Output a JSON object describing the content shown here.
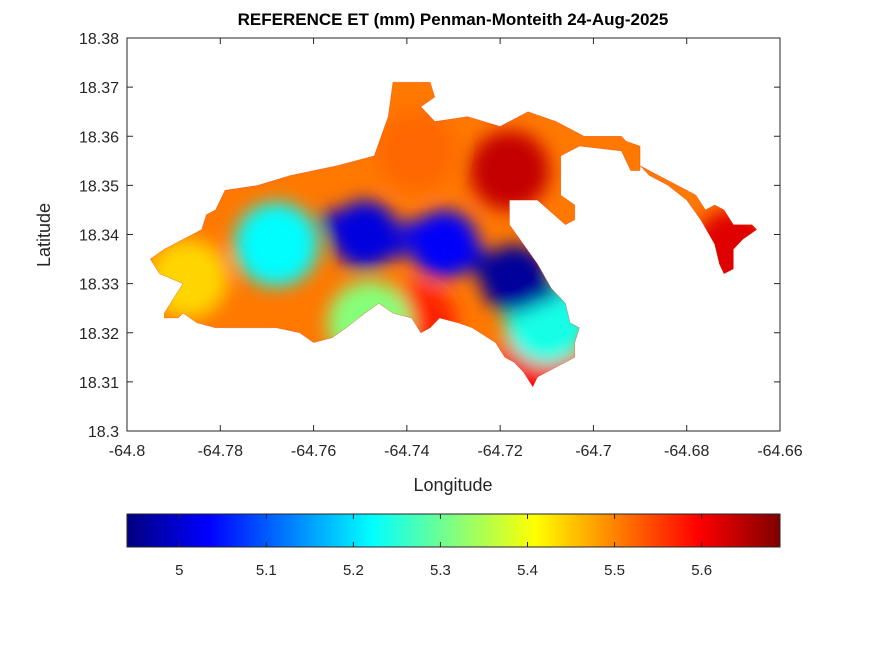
{
  "chart_data": {
    "type": "heatmap",
    "title": "REFERENCE ET (mm) Penman-Monteith 24-Aug-2025",
    "xlabel": "Longitude",
    "ylabel": "Latitude",
    "xlim": [
      -64.8,
      -64.66
    ],
    "ylim": [
      18.3,
      18.38
    ],
    "x_ticks": [
      "-64.8",
      "-64.78",
      "-64.76",
      "-64.74",
      "-64.72",
      "-64.7",
      "-64.68",
      "-64.66"
    ],
    "y_ticks": [
      "18.3",
      "18.31",
      "18.32",
      "18.33",
      "18.34",
      "18.35",
      "18.36",
      "18.37",
      "18.38"
    ],
    "grid": false,
    "colormap": "jet",
    "colorbar": {
      "placement": "bottom",
      "range": [
        4.94,
        5.69
      ],
      "ticks": [
        "5",
        "5.1",
        "5.2",
        "5.3",
        "5.4",
        "5.5",
        "5.6"
      ]
    },
    "regions": [
      {
        "region": "low-ET core",
        "lon": -64.717,
        "lat": 18.331,
        "value": 4.96
      },
      {
        "region": "low-ET west",
        "lon": -64.749,
        "lat": 18.34,
        "value": 5.01
      },
      {
        "region": "low-ET central",
        "lon": -64.732,
        "lat": 18.338,
        "value": 5.03
      },
      {
        "region": "moderate west",
        "lon": -64.768,
        "lat": 18.338,
        "value": 5.22
      },
      {
        "region": "moderate south",
        "lon": -64.748,
        "lat": 18.322,
        "value": 5.32
      },
      {
        "region": "moderate east",
        "lon": -64.71,
        "lat": 18.322,
        "value": 5.24
      },
      {
        "region": "western coast",
        "lon": -64.787,
        "lat": 18.331,
        "value": 5.44
      },
      {
        "region": "northern ridge",
        "lon": -64.738,
        "lat": 18.357,
        "value": 5.52
      },
      {
        "region": "north-east high",
        "lon": -64.718,
        "lat": 18.353,
        "value": 5.64
      },
      {
        "region": "eastern arm",
        "lon": -64.67,
        "lat": 18.337,
        "value": 5.62
      },
      {
        "region": "southern tip",
        "lon": -64.712,
        "lat": 18.314,
        "value": 5.6
      },
      {
        "region": "south-central coast",
        "lon": -64.738,
        "lat": 18.322,
        "value": 5.57
      }
    ]
  }
}
